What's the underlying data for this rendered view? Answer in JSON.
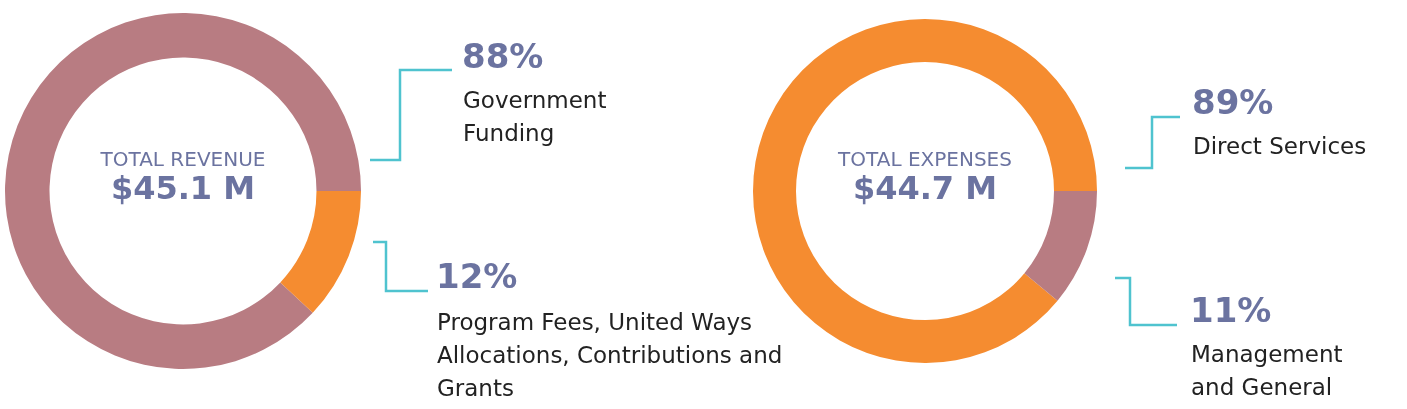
{
  "chart_data": [
    {
      "type": "donut",
      "title": "TOTAL REVENUE",
      "subtitle": "$45.1 M",
      "categories": [
        "Government Funding",
        "Program Fees, United Ways Allocations, Contributions and Grants"
      ],
      "values": [
        88,
        12
      ],
      "colors": [
        "#b87c82",
        "#f58c30"
      ],
      "value_labels": [
        "88%",
        "12%"
      ]
    },
    {
      "type": "donut",
      "title": "TOTAL EXPENSES",
      "subtitle": "$44.7 M",
      "categories": [
        "Direct Services",
        "Management and General"
      ],
      "values": [
        89,
        11
      ],
      "colors": [
        "#f58c30",
        "#b87c82"
      ],
      "value_labels": [
        "89%",
        "11%"
      ]
    }
  ]
}
